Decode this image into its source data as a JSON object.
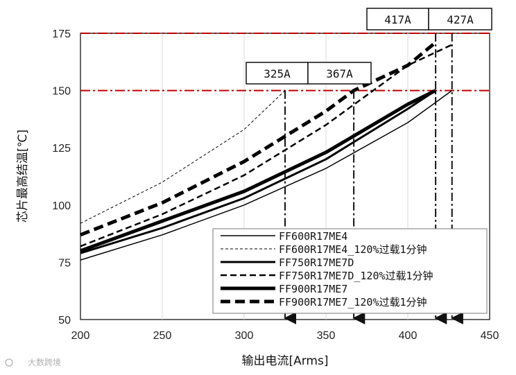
{
  "chart_data": {
    "type": "line",
    "xlabel": "输出电流[Arms]",
    "ylabel": "芯片最高结温[℃]",
    "xlim": [
      200,
      450
    ],
    "ylim": [
      50,
      175
    ],
    "x_ticks": [
      200,
      250,
      300,
      350,
      400,
      450
    ],
    "y_ticks": [
      50,
      75,
      100,
      125,
      150,
      175
    ],
    "grid": "vertical",
    "legend_position": "lower-right",
    "reference_lines": [
      {
        "y": 150,
        "color": "#c00000",
        "style": "dash-dot"
      },
      {
        "y": 175,
        "color": "#c00000",
        "style": "dash-dot"
      }
    ],
    "markers": [
      {
        "x": 325,
        "label": "325A",
        "from_y": 150
      },
      {
        "x": 367,
        "label": "367A",
        "from_y": 150
      },
      {
        "x": 417,
        "label": "417A",
        "from_y": 175
      },
      {
        "x": 427,
        "label": "427A",
        "from_y": 175
      }
    ],
    "series": [
      {
        "name": "FF600R17ME4",
        "width": 1.5,
        "dash": "",
        "x": [
          200,
          250,
          300,
          350,
          400,
          427
        ],
        "y": [
          76,
          87,
          100,
          116,
          136,
          150
        ]
      },
      {
        "name": "FF600R17ME4_120%过载1分钟",
        "width": 1,
        "dash": "4,3",
        "x": [
          200,
          250,
          300,
          325
        ],
        "y": [
          92,
          110,
          133,
          150
        ]
      },
      {
        "name": "FF750R17ME7D",
        "width": 3,
        "dash": "",
        "x": [
          200,
          250,
          300,
          350,
          400,
          417
        ],
        "y": [
          79,
          90,
          103,
          120,
          142,
          150
        ]
      },
      {
        "name": "FF750R17ME7D_120%过载1分钟",
        "width": 2.5,
        "dash": "9,5",
        "x": [
          200,
          250,
          300,
          350,
          400,
          427
        ],
        "y": [
          82,
          96,
          113,
          135,
          161,
          170
        ]
      },
      {
        "name": "FF900R17ME7",
        "width": 5,
        "dash": "",
        "x": [
          200,
          250,
          300,
          350,
          400,
          417
        ],
        "y": [
          80,
          93,
          106,
          123,
          144,
          150
        ]
      },
      {
        "name": "FF900R17ME7_120%过载1分钟",
        "width": 5,
        "dash": "14,7",
        "x": [
          200,
          250,
          300,
          350,
          367,
          400,
          417
        ],
        "y": [
          87,
          101,
          119,
          141,
          150,
          161,
          171
        ]
      }
    ]
  },
  "watermark": "大数跨境"
}
